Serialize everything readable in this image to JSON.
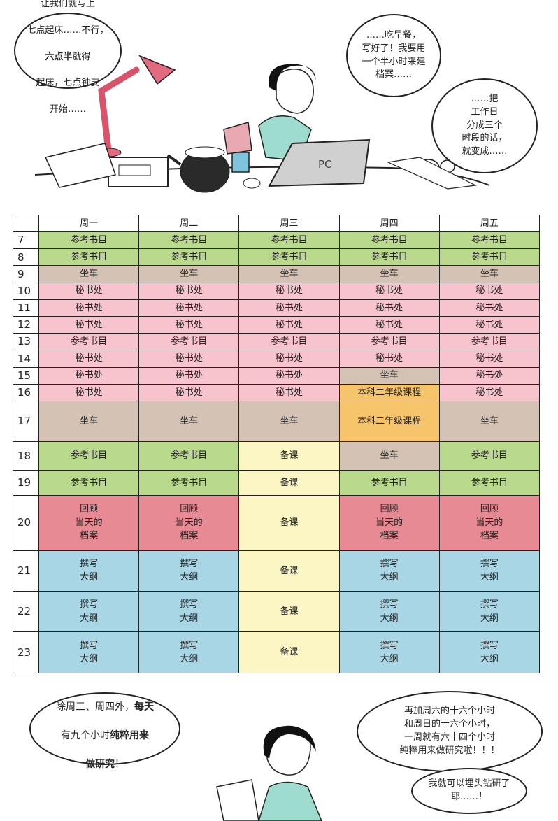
{
  "bubbles": {
    "top_left": {
      "line1": "让我们就写上",
      "line2": "七点起床……不行，",
      "line3_bold": "六点半",
      "line3_rest": "就得",
      "line4": "起床，七点钟要",
      "line5": "开始……"
    },
    "top_right": "……吃早餐，\n写好了！我要用\n一个半小时来建\n档案……",
    "mid_right": "……把\n工作日\n分成三个\n时段的话，\n就变成……",
    "bottom_left": {
      "text": "除周三、周四外，",
      "bold1": "每天",
      "line2": "有九个小时",
      "bold2": "纯粹用来",
      "bold3": "做研究",
      "end": "！"
    },
    "bottom_right": "再加周六的十六个小时\n和周日的十六个小时，\n一周就有六十四个小时\n纯粹用来做研究啦！！！",
    "bottom_right_small": "我就可以埋头钻研了\n耶……！"
  },
  "laptop_label": "PC",
  "schedule": {
    "days": [
      "周一",
      "周二",
      "周三",
      "周四",
      "周五"
    ],
    "rows": [
      {
        "hour": "7",
        "cells": [
          [
            "参考书目",
            "ref"
          ],
          [
            "参考书目",
            "ref"
          ],
          [
            "参考书目",
            "ref"
          ],
          [
            "参考书目",
            "ref"
          ],
          [
            "参考书目",
            "ref"
          ]
        ]
      },
      {
        "hour": "8",
        "cells": [
          [
            "参考书目",
            "ref"
          ],
          [
            "参考书目",
            "ref"
          ],
          [
            "参考书目",
            "ref"
          ],
          [
            "参考书目",
            "ref"
          ],
          [
            "参考书目",
            "ref"
          ]
        ]
      },
      {
        "hour": "9",
        "cells": [
          [
            "坐车",
            "bus"
          ],
          [
            "坐车",
            "bus"
          ],
          [
            "坐车",
            "bus"
          ],
          [
            "坐车",
            "bus"
          ],
          [
            "坐车",
            "bus"
          ]
        ]
      },
      {
        "hour": "10",
        "cells": [
          [
            "秘书处",
            "sec"
          ],
          [
            "秘书处",
            "sec"
          ],
          [
            "秘书处",
            "sec"
          ],
          [
            "秘书处",
            "sec"
          ],
          [
            "秘书处",
            "sec"
          ]
        ]
      },
      {
        "hour": "11",
        "cells": [
          [
            "秘书处",
            "sec"
          ],
          [
            "秘书处",
            "sec"
          ],
          [
            "秘书处",
            "sec"
          ],
          [
            "秘书处",
            "sec"
          ],
          [
            "秘书处",
            "sec"
          ]
        ]
      },
      {
        "hour": "12",
        "cells": [
          [
            "秘书处",
            "sec"
          ],
          [
            "秘书处",
            "sec"
          ],
          [
            "秘书处",
            "sec"
          ],
          [
            "秘书处",
            "sec"
          ],
          [
            "秘书处",
            "sec"
          ]
        ]
      },
      {
        "hour": "13",
        "cells": [
          [
            "参考书目",
            "sec"
          ],
          [
            "参考书目",
            "sec"
          ],
          [
            "参考书目",
            "sec"
          ],
          [
            "参考书目",
            "sec"
          ],
          [
            "参考书目",
            "sec"
          ]
        ]
      },
      {
        "hour": "14",
        "cells": [
          [
            "秘书处",
            "sec"
          ],
          [
            "秘书处",
            "sec"
          ],
          [
            "秘书处",
            "sec"
          ],
          [
            "秘书处",
            "sec"
          ],
          [
            "秘书处",
            "sec"
          ]
        ]
      },
      {
        "hour": "15",
        "cells": [
          [
            "秘书处",
            "sec"
          ],
          [
            "秘书处",
            "sec"
          ],
          [
            "秘书处",
            "sec"
          ],
          [
            "坐车",
            "bus"
          ],
          [
            "秘书处",
            "sec"
          ]
        ]
      },
      {
        "hour": "16",
        "cells": [
          [
            "秘书处",
            "sec"
          ],
          [
            "秘书处",
            "sec"
          ],
          [
            "秘书处",
            "sec"
          ],
          [
            "本科二年级课程",
            "ug"
          ],
          [
            "秘书处",
            "sec"
          ]
        ]
      },
      {
        "hour": "17",
        "cells": [
          [
            "坐车",
            "bus"
          ],
          [
            "坐车",
            "bus"
          ],
          [
            "坐车",
            "bus"
          ],
          [
            "本科二年级课程",
            "ug"
          ],
          [
            "坐车",
            "bus"
          ]
        ]
      },
      {
        "hour": "18",
        "cells": [
          [
            "参考书目",
            "ref"
          ],
          [
            "参考书目",
            "ref"
          ],
          [
            "备课",
            "prep"
          ],
          [
            "坐车",
            "bus"
          ],
          [
            "参考书目",
            "ref"
          ]
        ]
      },
      {
        "hour": "19",
        "cells": [
          [
            "参考书目",
            "ref"
          ],
          [
            "参考书目",
            "ref"
          ],
          [
            "备课",
            "prep"
          ],
          [
            "参考书目",
            "ref"
          ],
          [
            "参考书目",
            "ref"
          ]
        ]
      },
      {
        "hour": "20",
        "cells": [
          [
            "回顾\n当天的\n档案",
            "rev"
          ],
          [
            "回顾\n当天的\n档案",
            "rev"
          ],
          [
            "备课",
            "prep"
          ],
          [
            "回顾\n当天的\n档案",
            "rev"
          ],
          [
            "回顾\n当天的\n档案",
            "rev"
          ]
        ]
      },
      {
        "hour": "21",
        "cells": [
          [
            "撰写\n大纲",
            "out"
          ],
          [
            "撰写\n大纲",
            "out"
          ],
          [
            "备课",
            "prep"
          ],
          [
            "撰写\n大纲",
            "out"
          ],
          [
            "撰写\n大纲",
            "out"
          ]
        ]
      },
      {
        "hour": "22",
        "cells": [
          [
            "撰写\n大纲",
            "out"
          ],
          [
            "撰写\n大纲",
            "out"
          ],
          [
            "备课",
            "prep"
          ],
          [
            "撰写\n大纲",
            "out"
          ],
          [
            "撰写\n大纲",
            "out"
          ]
        ]
      },
      {
        "hour": "23",
        "cells": [
          [
            "撰写\n大纲",
            "out"
          ],
          [
            "撰写\n大纲",
            "out"
          ],
          [
            "备课",
            "prep"
          ],
          [
            "撰写\n大纲",
            "out"
          ],
          [
            "撰写\n大纲",
            "out"
          ]
        ]
      }
    ]
  }
}
